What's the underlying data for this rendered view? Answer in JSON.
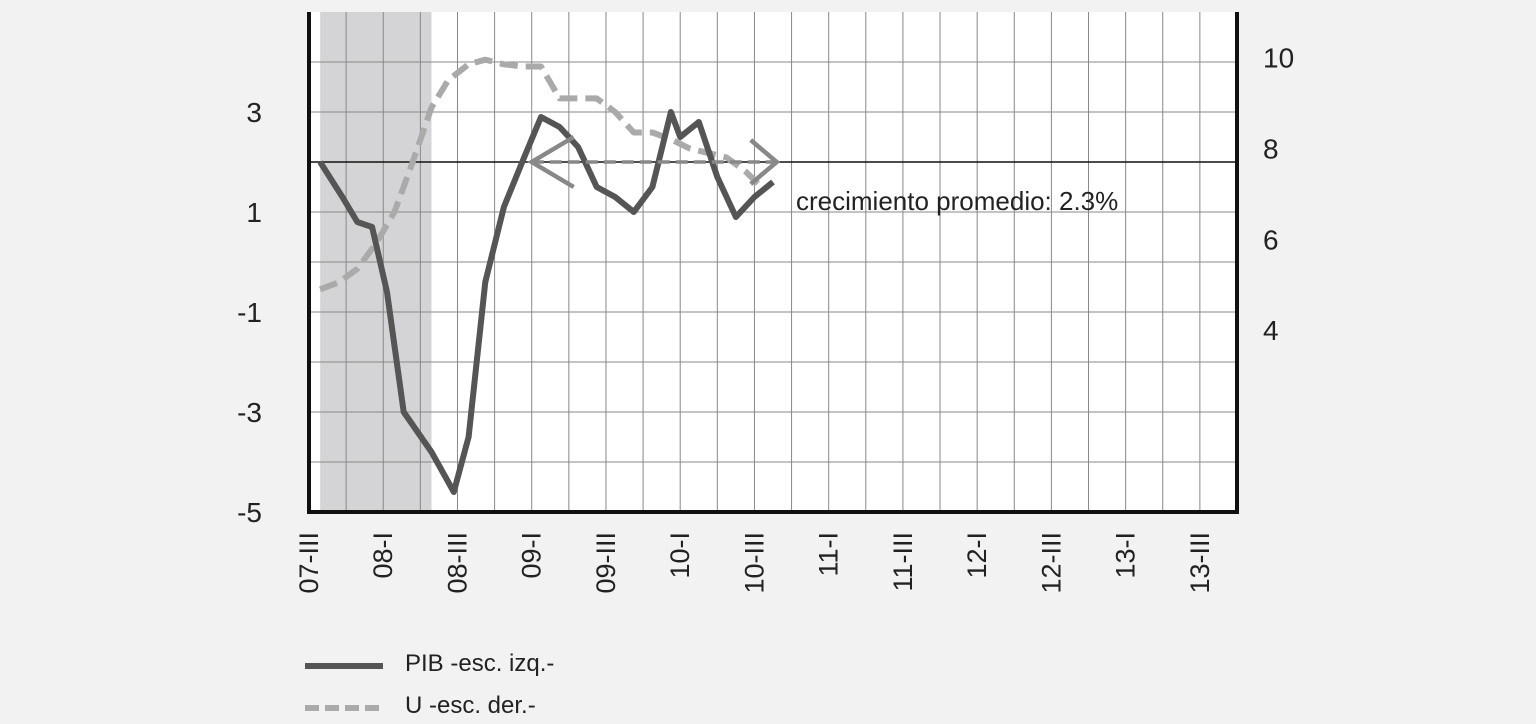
{
  "chart_data": {
    "type": "line",
    "title": "",
    "x_tick_labels": [
      "07-III",
      "08-I",
      "08-III",
      "09-I",
      "09-III",
      "10-I",
      "10-III",
      "11-I",
      "11-III",
      "12-I",
      "12-III",
      "13-I",
      "13-III"
    ],
    "y_left": {
      "range": [
        -5,
        5
      ],
      "ticks": [
        -5,
        -3,
        -1,
        1,
        3
      ]
    },
    "y_right": {
      "range": [
        0,
        11
      ],
      "ticks": [
        4,
        6,
        8,
        10
      ]
    },
    "x_range": [
      0,
      25
    ],
    "shaded_region": {
      "x_start": 0.3,
      "x_end": 3.3,
      "color": "#d4d4d6"
    },
    "reference_line_left": 2,
    "series": [
      {
        "name": "PIB -esc. izq.-",
        "axis": "left",
        "style": "solid",
        "color": "#555555",
        "x": [
          0.3,
          0.9,
          1.3,
          1.7,
          2.1,
          2.55,
          3.3,
          3.9,
          4.3,
          4.75,
          5.25,
          5.8,
          6.25,
          6.75,
          7.25,
          7.75,
          8.25,
          8.75,
          9.25,
          9.75,
          10.0,
          10.5,
          11.0,
          11.5,
          12.0,
          12.5
        ],
        "values": [
          2.0,
          1.3,
          0.8,
          0.7,
          -0.6,
          -3.0,
          -3.8,
          -4.6,
          -3.5,
          -0.4,
          1.1,
          2.1,
          2.9,
          2.7,
          2.3,
          1.5,
          1.3,
          1.0,
          1.5,
          3.0,
          2.5,
          2.8,
          1.7,
          0.9,
          1.3,
          1.6
        ]
      },
      {
        "name": "U -esc. der.-",
        "axis": "right",
        "style": "dashed",
        "color": "#aaaaaa",
        "x": [
          0.3,
          0.8,
          1.3,
          1.8,
          2.3,
          2.75,
          3.3,
          3.75,
          4.3,
          4.75,
          5.25,
          5.75,
          6.25,
          6.75,
          7.3,
          7.75,
          8.25,
          8.75,
          9.25,
          9.75,
          10.25,
          10.75,
          11.25,
          11.75,
          12.25
        ],
        "values": [
          4.9,
          5.05,
          5.35,
          5.9,
          6.6,
          7.6,
          8.9,
          9.5,
          9.85,
          9.95,
          9.85,
          9.8,
          9.8,
          9.1,
          9.1,
          9.1,
          8.8,
          8.35,
          8.35,
          8.2,
          8.0,
          7.9,
          7.8,
          7.5,
          7.1
        ]
      }
    ],
    "annotations": [
      {
        "text": "crecimiento promedio: 2.3%",
        "arrow_from_x": 6.0,
        "arrow_to_x": 12.6,
        "y_left": 2.0
      }
    ],
    "legend": [
      {
        "label": "PIB -esc. izq.-",
        "style": "solid",
        "color": "#555555"
      },
      {
        "label": "U -esc. der.-",
        "style": "dashed",
        "color": "#aaaaaa"
      }
    ],
    "legend_placement": "bottom-left",
    "grid": true
  }
}
